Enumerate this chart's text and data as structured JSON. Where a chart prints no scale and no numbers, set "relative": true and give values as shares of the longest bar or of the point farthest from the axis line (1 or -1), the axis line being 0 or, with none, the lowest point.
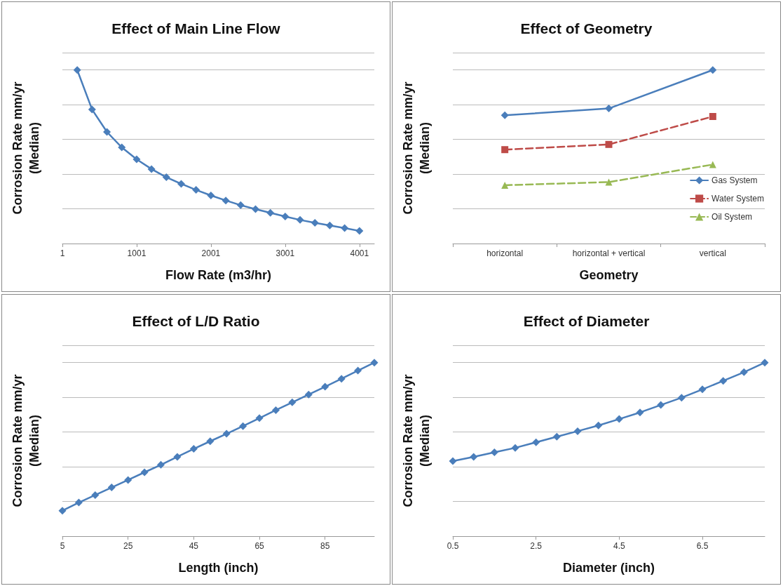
{
  "chart_data": [
    {
      "type": "line",
      "title": "Effect of Main Line Flow",
      "xlabel": "Flow Rate (m3/hr)",
      "ylabel": "Corrosion Rate mm/yr\n(Median)",
      "relative": true,
      "x": [
        201,
        401,
        601,
        801,
        1001,
        1201,
        1401,
        1601,
        1801,
        2001,
        2201,
        2401,
        2601,
        2801,
        3001,
        3201,
        3401,
        3601,
        3801,
        4001
      ],
      "xlim": [
        1,
        4201
      ],
      "xticks": [
        1,
        1001,
        2001,
        3001,
        4001
      ],
      "series": [
        {
          "color": "#4a7ebb",
          "values": [
            1.0,
            0.772,
            0.643,
            0.554,
            0.485,
            0.429,
            0.382,
            0.344,
            0.309,
            0.277,
            0.248,
            0.221,
            0.198,
            0.177,
            0.156,
            0.136,
            0.119,
            0.104,
            0.089,
            0.073
          ]
        }
      ],
      "grid": "y",
      "marker": "diamond",
      "line_style": "solid"
    },
    {
      "type": "line",
      "title": "Effect of Geometry",
      "xlabel": "Geometry",
      "ylabel": "Corrosion Rate mm/yr\n(Median)",
      "relative": true,
      "categories": [
        "horizontal",
        "horizontal + vertical",
        "vertical"
      ],
      "series": [
        {
          "name": "Gas System",
          "color": "#4a7ebb",
          "values": [
            0.739,
            0.778,
            1.0
          ],
          "marker": "diamond",
          "line_style": "solid"
        },
        {
          "name": "Water System",
          "color": "#be4b48",
          "values": [
            0.541,
            0.571,
            0.732
          ],
          "marker": "square",
          "line_style": "dashed"
        },
        {
          "name": "Oil System",
          "color": "#98b954",
          "values": [
            0.336,
            0.354,
            0.455
          ],
          "marker": "triangle",
          "line_style": "dashed"
        }
      ],
      "grid": "y",
      "legend": "bottom right"
    },
    {
      "type": "line",
      "title": "Effect of L/D Ratio",
      "xlabel": "Length (inch)",
      "ylabel": "Corrosion Rate mm/yr\n(Median)",
      "relative": true,
      "x": [
        5,
        10,
        15,
        20,
        25,
        30,
        35,
        40,
        45,
        50,
        55,
        60,
        65,
        70,
        75,
        80,
        85,
        90,
        95,
        100
      ],
      "xlim": [
        5,
        100
      ],
      "xticks": [
        5,
        25,
        45,
        65,
        85
      ],
      "series": [
        {
          "color": "#4a7ebb",
          "values": [
            0.147,
            0.194,
            0.237,
            0.281,
            0.324,
            0.368,
            0.411,
            0.457,
            0.503,
            0.547,
            0.59,
            0.634,
            0.68,
            0.726,
            0.771,
            0.816,
            0.861,
            0.907,
            0.954,
            1.0
          ]
        }
      ],
      "grid": "y",
      "marker": "diamond",
      "line_style": "solid"
    },
    {
      "type": "line",
      "title": "Effect of Diameter",
      "xlabel": "Diameter (inch)",
      "ylabel": "Corrosion Rate mm/yr\n(Median)",
      "relative": true,
      "x": [
        0.5,
        1,
        1.5,
        2,
        2.5,
        3,
        3.5,
        4,
        4.5,
        5,
        5.5,
        6,
        6.5,
        7,
        7.5,
        8
      ],
      "xlim": [
        0.5,
        8
      ],
      "xticks": [
        0.5,
        2.5,
        4.5,
        6.5
      ],
      "series": [
        {
          "color": "#4a7ebb",
          "values": [
            0.433,
            0.457,
            0.483,
            0.509,
            0.541,
            0.573,
            0.605,
            0.638,
            0.675,
            0.713,
            0.756,
            0.798,
            0.846,
            0.895,
            0.945,
            1.0
          ]
        }
      ],
      "grid": "y",
      "marker": "diamond",
      "line_style": "solid"
    }
  ]
}
